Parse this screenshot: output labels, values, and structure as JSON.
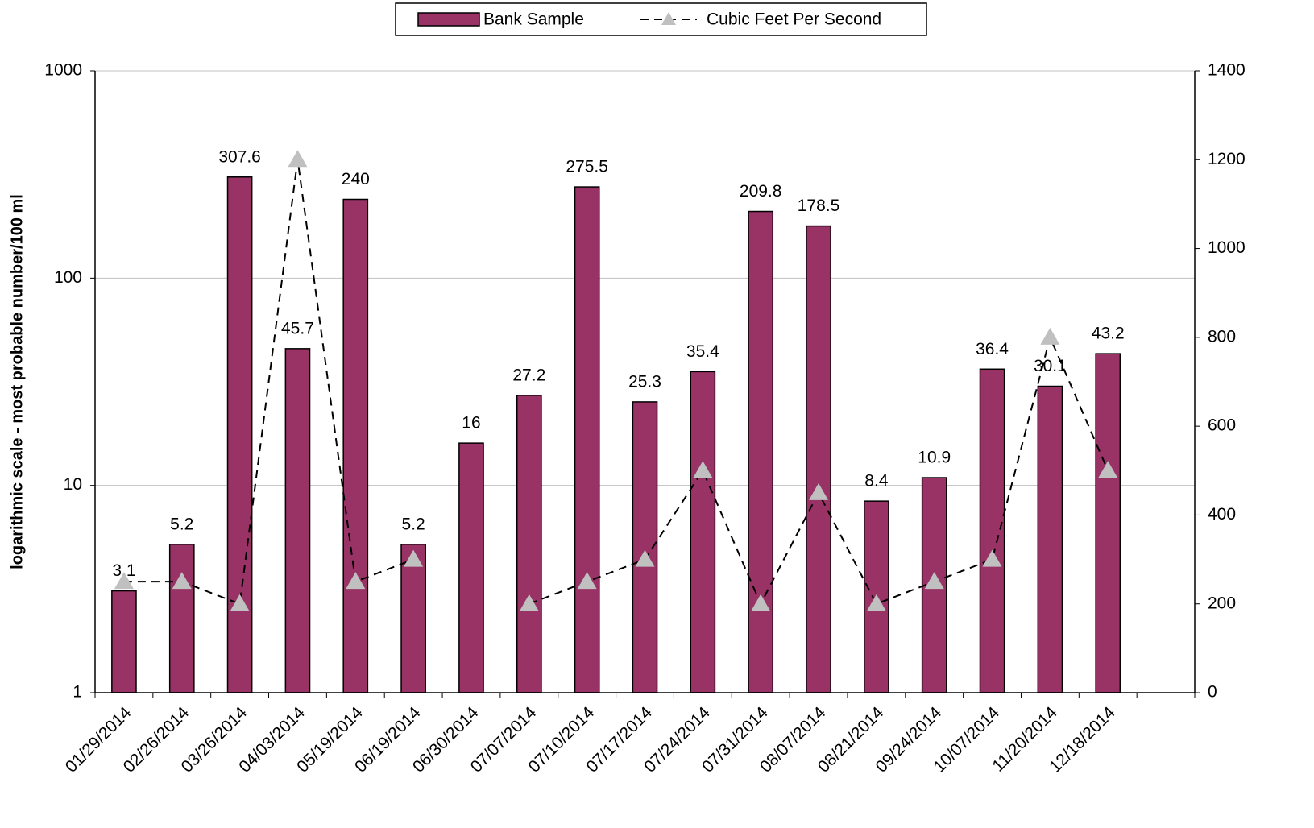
{
  "chart_data": {
    "type": "bar",
    "legend": "top",
    "grid": true,
    "y_scale": "log",
    "ylabel": "logarithmic scale - most probable number/100 ml",
    "categories": [
      "01/29/2014",
      "02/26/2014",
      "03/26/2014",
      "04/03/2014",
      "05/19/2014",
      "06/19/2014",
      "06/30/2014",
      "07/07/2014",
      "07/10/2014",
      "07/17/2014",
      "07/24/2014",
      "07/31/2014",
      "08/07/2014",
      "08/21/2014",
      "09/24/2014",
      "10/07/2014",
      "11/20/2014",
      "12/18/2014",
      null
    ],
    "ylim": [
      1,
      1000
    ],
    "yticks": [
      1,
      10,
      100,
      1000
    ],
    "y2lim": [
      0,
      1400
    ],
    "y2ticks": [
      0,
      200,
      400,
      600,
      800,
      1000,
      1200,
      1400
    ],
    "series": [
      {
        "name": "Bank Sample",
        "type": "bar",
        "color": "#993366",
        "values": [
          3.1,
          5.2,
          307.6,
          45.7,
          240,
          5.2,
          16,
          27.2,
          275.5,
          25.3,
          35.4,
          209.8,
          178.5,
          8.4,
          10.9,
          36.4,
          30.1,
          43.2,
          null
        ]
      },
      {
        "name": "Cubic Feet Per Second",
        "type": "line",
        "axis": "y2",
        "color": "#000000",
        "marker_color": "#c0c0c0",
        "values": [
          250,
          250,
          200,
          1200,
          250,
          300,
          null,
          200,
          250,
          300,
          500,
          200,
          450,
          200,
          250,
          300,
          800,
          500,
          null
        ]
      }
    ]
  }
}
